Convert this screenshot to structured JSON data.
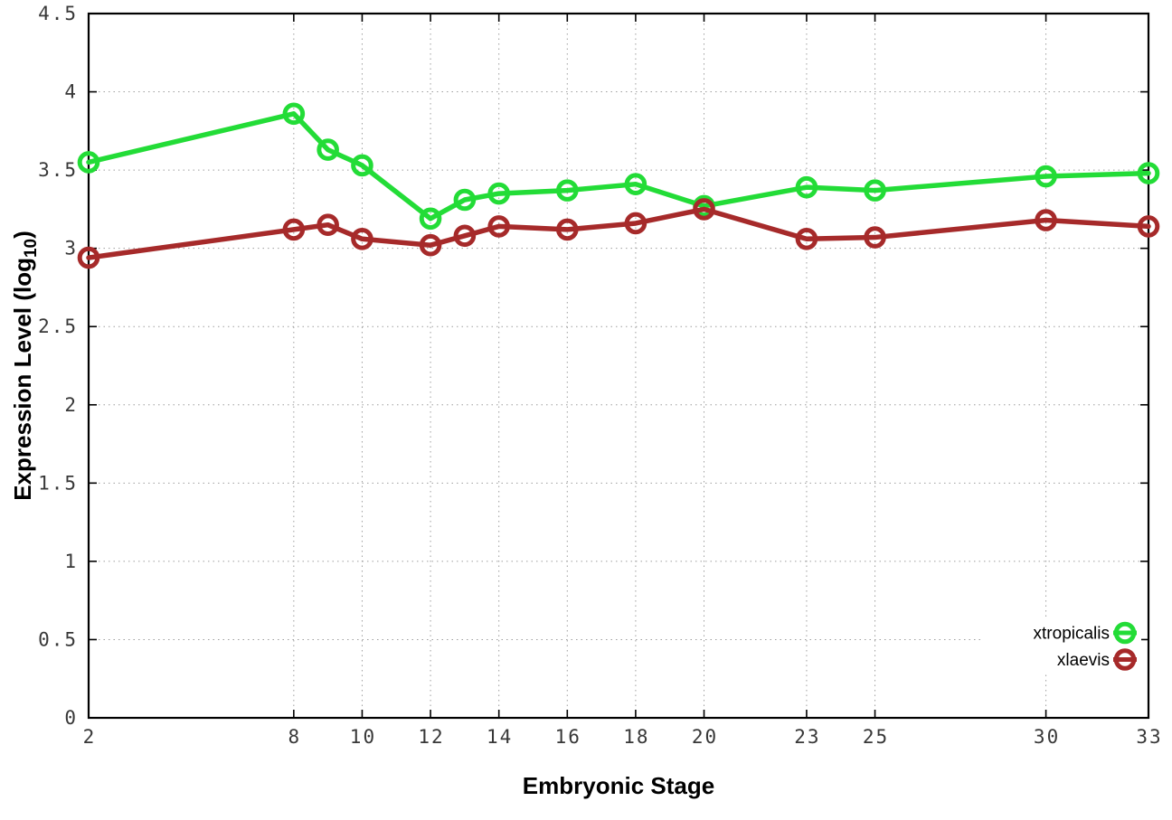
{
  "chart_data": {
    "type": "line",
    "xlabel": "Embryonic Stage",
    "ylabel": "Expression Level (log10)",
    "ylabel_parts": {
      "prefix": "Expression Level (log",
      "subscript": "10",
      "suffix": ")"
    },
    "x": [
      2,
      8,
      9,
      10,
      12,
      13,
      14,
      16,
      18,
      20,
      23,
      25,
      30,
      33
    ],
    "x_ticks": [
      2,
      8,
      10,
      12,
      14,
      16,
      18,
      20,
      23,
      25,
      30,
      33
    ],
    "x_tick_labels": [
      "2",
      "8",
      "10",
      "12",
      "14",
      "16",
      "18",
      "20",
      "23",
      "25",
      "30",
      "33"
    ],
    "y_ticks": [
      0,
      0.5,
      1,
      1.5,
      2,
      2.5,
      3,
      3.5,
      4,
      4.5
    ],
    "y_tick_labels": [
      "0",
      "0.5",
      "1",
      "1.5",
      "2",
      "2.5",
      "3",
      "3.5",
      "4",
      "4.5"
    ],
    "xlim": [
      2,
      33
    ],
    "ylim": [
      0,
      4.5
    ],
    "grid": true,
    "legend_position": "bottom-right",
    "series": [
      {
        "name": "xtropicalis",
        "color": "#23dc37",
        "values": [
          3.55,
          3.86,
          3.63,
          3.53,
          3.19,
          3.31,
          3.35,
          3.37,
          3.41,
          3.27,
          3.39,
          3.37,
          3.46,
          3.48
        ]
      },
      {
        "name": "xlaevis",
        "color": "#a62a2a",
        "values": [
          2.94,
          3.12,
          3.15,
          3.06,
          3.02,
          3.08,
          3.14,
          3.12,
          3.16,
          3.25,
          3.06,
          3.07,
          3.18,
          3.14
        ]
      }
    ]
  },
  "colors": {
    "background": "#ffffff",
    "axis": "#000000",
    "grid": "#9e9e9e",
    "tick_text": "#383838",
    "title_text": "#000000",
    "legend_text": "#000000"
  }
}
